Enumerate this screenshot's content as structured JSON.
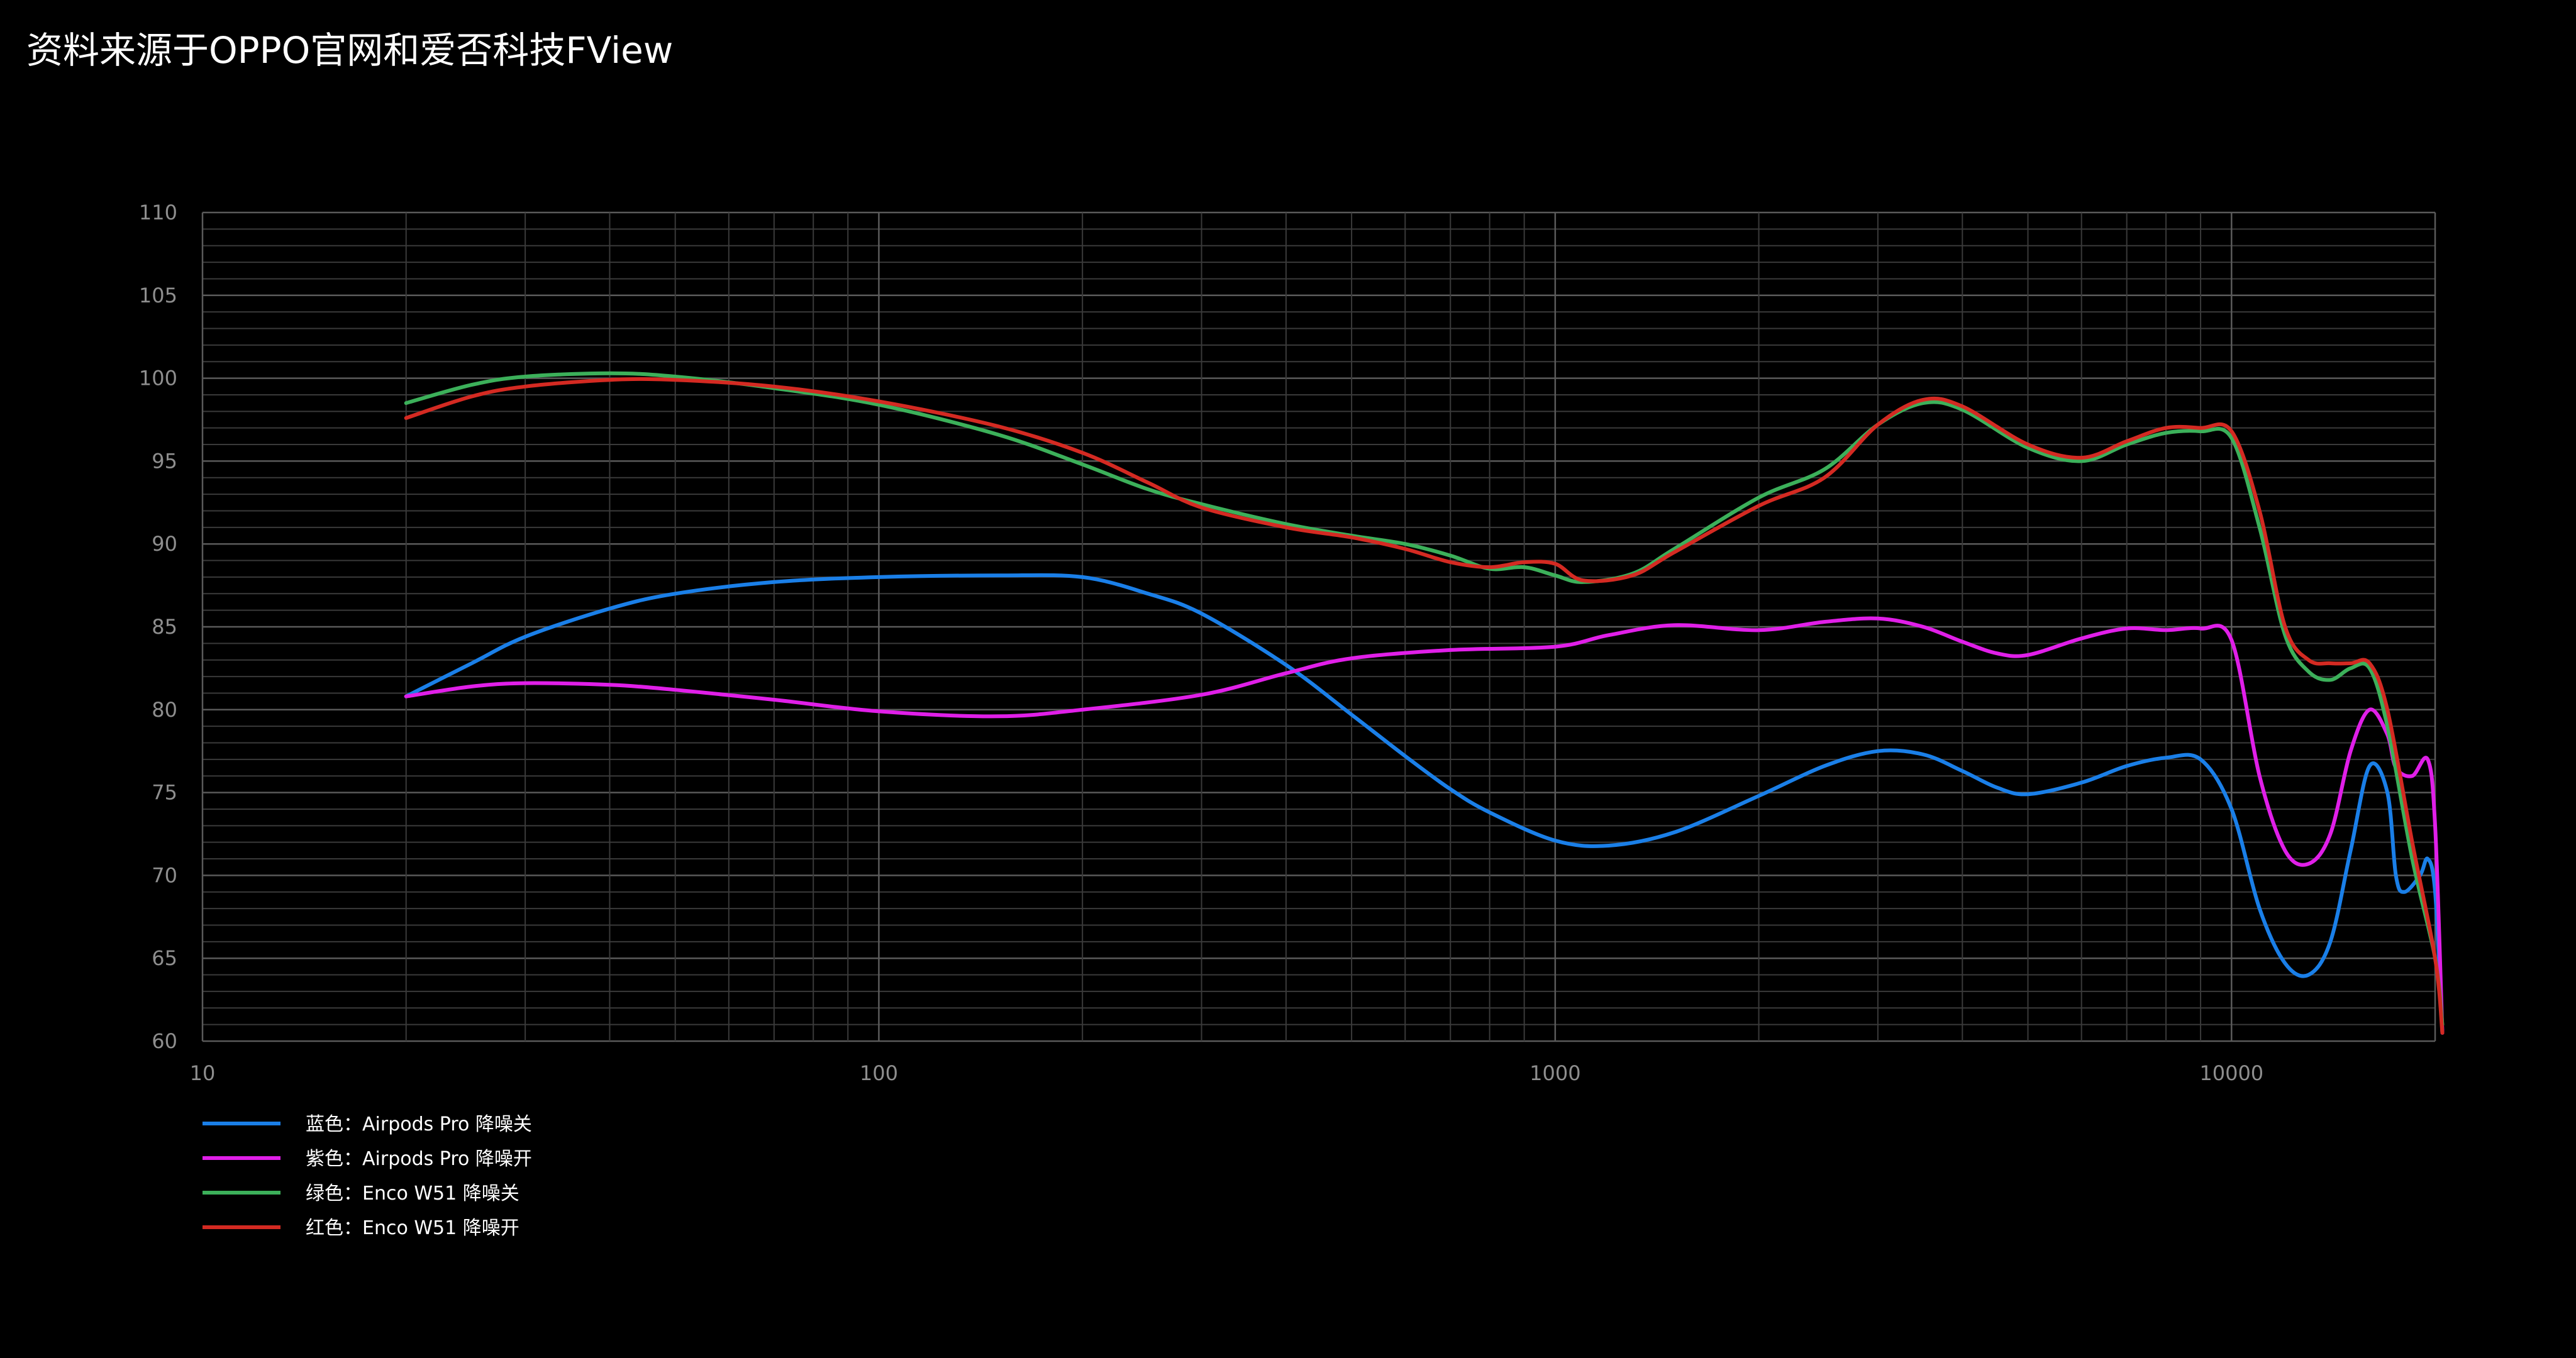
{
  "source_note": "资料来源于OPPO官网和爱否科技FView",
  "chart_data": {
    "type": "line",
    "xscale": "log",
    "xlim": [
      10,
      20000
    ],
    "ylim": [
      60,
      110
    ],
    "x_ticks": [
      {
        "value": 10,
        "label": "10"
      },
      {
        "value": 100,
        "label": "100"
      },
      {
        "value": 1000,
        "label": "1000"
      },
      {
        "value": 10000,
        "label": "10000"
      }
    ],
    "y_ticks": [
      110,
      105,
      100,
      95,
      90,
      85,
      80,
      75,
      70,
      65,
      60
    ],
    "grid": true,
    "legend_position": "bottom-left",
    "series": [
      {
        "name": "蓝色：Airpods Pro 降噪关",
        "color": "#1a7fe8",
        "points": [
          [
            20,
            80.8
          ],
          [
            25,
            82.8
          ],
          [
            30,
            84.4
          ],
          [
            40,
            86.1
          ],
          [
            50,
            87.0
          ],
          [
            70,
            87.7
          ],
          [
            100,
            88.0
          ],
          [
            150,
            88.1
          ],
          [
            200,
            88.0
          ],
          [
            250,
            87.0
          ],
          [
            300,
            85.8
          ],
          [
            400,
            82.7
          ],
          [
            500,
            79.7
          ],
          [
            600,
            77.2
          ],
          [
            700,
            75.2
          ],
          [
            800,
            73.8
          ],
          [
            1000,
            72.1
          ],
          [
            1200,
            71.8
          ],
          [
            1500,
            72.6
          ],
          [
            2000,
            74.8
          ],
          [
            2500,
            76.6
          ],
          [
            3000,
            77.5
          ],
          [
            3500,
            77.3
          ],
          [
            4000,
            76.3
          ],
          [
            4500,
            75.3
          ],
          [
            5000,
            74.9
          ],
          [
            6000,
            75.6
          ],
          [
            7000,
            76.6
          ],
          [
            8000,
            77.1
          ],
          [
            9000,
            77.0
          ],
          [
            10000,
            74.0
          ],
          [
            11000,
            68.0
          ],
          [
            12000,
            64.7
          ],
          [
            13000,
            64.0
          ],
          [
            14000,
            66.0
          ],
          [
            15000,
            71.5
          ],
          [
            16000,
            76.6
          ],
          [
            17000,
            75.0
          ],
          [
            17500,
            70.0
          ],
          [
            18000,
            69.0
          ],
          [
            19000,
            70.0
          ],
          [
            19500,
            71.0
          ],
          [
            20000,
            69.0
          ],
          [
            20500,
            60.5
          ]
        ]
      },
      {
        "name": "紫色：Airpods Pro 降噪开",
        "color": "#e01fe8",
        "points": [
          [
            20,
            80.8
          ],
          [
            25,
            81.4
          ],
          [
            30,
            81.6
          ],
          [
            40,
            81.5
          ],
          [
            50,
            81.2
          ],
          [
            70,
            80.6
          ],
          [
            100,
            79.9
          ],
          [
            150,
            79.6
          ],
          [
            200,
            80.0
          ],
          [
            300,
            80.9
          ],
          [
            400,
            82.2
          ],
          [
            500,
            83.1
          ],
          [
            700,
            83.6
          ],
          [
            1000,
            83.8
          ],
          [
            1200,
            84.5
          ],
          [
            1500,
            85.1
          ],
          [
            2000,
            84.8
          ],
          [
            2500,
            85.3
          ],
          [
            3000,
            85.5
          ],
          [
            3500,
            85.0
          ],
          [
            4000,
            84.1
          ],
          [
            4500,
            83.4
          ],
          [
            5000,
            83.3
          ],
          [
            6000,
            84.3
          ],
          [
            7000,
            84.9
          ],
          [
            8000,
            84.8
          ],
          [
            9000,
            84.9
          ],
          [
            10000,
            84.2
          ],
          [
            11000,
            76.0
          ],
          [
            12000,
            71.5
          ],
          [
            13000,
            70.7
          ],
          [
            14000,
            72.5
          ],
          [
            15000,
            77.5
          ],
          [
            16000,
            80.0
          ],
          [
            17000,
            78.5
          ],
          [
            17500,
            76.5
          ],
          [
            18500,
            76.0
          ],
          [
            19500,
            77.0
          ],
          [
            20000,
            73.0
          ],
          [
            20500,
            60.5
          ]
        ]
      },
      {
        "name": "绿色：Enco W51 降噪关",
        "color": "#3cb05a",
        "points": [
          [
            20,
            98.5
          ],
          [
            25,
            99.6
          ],
          [
            30,
            100.1
          ],
          [
            40,
            100.3
          ],
          [
            50,
            100.1
          ],
          [
            70,
            99.4
          ],
          [
            100,
            98.4
          ],
          [
            150,
            96.6
          ],
          [
            200,
            94.8
          ],
          [
            250,
            93.3
          ],
          [
            300,
            92.4
          ],
          [
            400,
            91.2
          ],
          [
            500,
            90.5
          ],
          [
            600,
            90.0
          ],
          [
            700,
            89.3
          ],
          [
            800,
            88.5
          ],
          [
            900,
            88.6
          ],
          [
            1000,
            88.1
          ],
          [
            1100,
            87.7
          ],
          [
            1300,
            88.2
          ],
          [
            1500,
            89.7
          ],
          [
            2000,
            92.8
          ],
          [
            2500,
            94.5
          ],
          [
            3000,
            97.2
          ],
          [
            3500,
            98.5
          ],
          [
            4000,
            98.1
          ],
          [
            5000,
            95.8
          ],
          [
            6000,
            95.0
          ],
          [
            7000,
            96.0
          ],
          [
            8000,
            96.7
          ],
          [
            9000,
            96.8
          ],
          [
            10000,
            96.4
          ],
          [
            11000,
            91.0
          ],
          [
            12000,
            84.5
          ],
          [
            13000,
            82.3
          ],
          [
            14000,
            81.8
          ],
          [
            15000,
            82.5
          ],
          [
            16000,
            82.5
          ],
          [
            17000,
            79.0
          ],
          [
            18500,
            71.0
          ],
          [
            20000,
            65.0
          ],
          [
            20500,
            61.0
          ]
        ]
      },
      {
        "name": "红色：Enco W51 降噪开",
        "color": "#d42a22",
        "points": [
          [
            20,
            97.6
          ],
          [
            25,
            98.9
          ],
          [
            30,
            99.5
          ],
          [
            40,
            99.9
          ],
          [
            50,
            99.9
          ],
          [
            70,
            99.5
          ],
          [
            100,
            98.6
          ],
          [
            150,
            97.1
          ],
          [
            200,
            95.5
          ],
          [
            250,
            93.7
          ],
          [
            300,
            92.2
          ],
          [
            400,
            91.0
          ],
          [
            500,
            90.4
          ],
          [
            600,
            89.7
          ],
          [
            700,
            88.9
          ],
          [
            800,
            88.6
          ],
          [
            900,
            88.9
          ],
          [
            1000,
            88.8
          ],
          [
            1100,
            87.8
          ],
          [
            1300,
            88.1
          ],
          [
            1500,
            89.5
          ],
          [
            2000,
            92.3
          ],
          [
            2500,
            94.0
          ],
          [
            3000,
            97.2
          ],
          [
            3500,
            98.7
          ],
          [
            4000,
            98.3
          ],
          [
            5000,
            96.0
          ],
          [
            6000,
            95.2
          ],
          [
            7000,
            96.2
          ],
          [
            8000,
            97.0
          ],
          [
            9000,
            97.0
          ],
          [
            10000,
            96.8
          ],
          [
            11000,
            92.0
          ],
          [
            12000,
            85.0
          ],
          [
            13000,
            83.0
          ],
          [
            14000,
            82.8
          ],
          [
            15000,
            82.8
          ],
          [
            16000,
            82.8
          ],
          [
            17000,
            80.0
          ],
          [
            18500,
            72.0
          ],
          [
            20000,
            65.0
          ],
          [
            20500,
            60.5
          ]
        ]
      }
    ]
  }
}
